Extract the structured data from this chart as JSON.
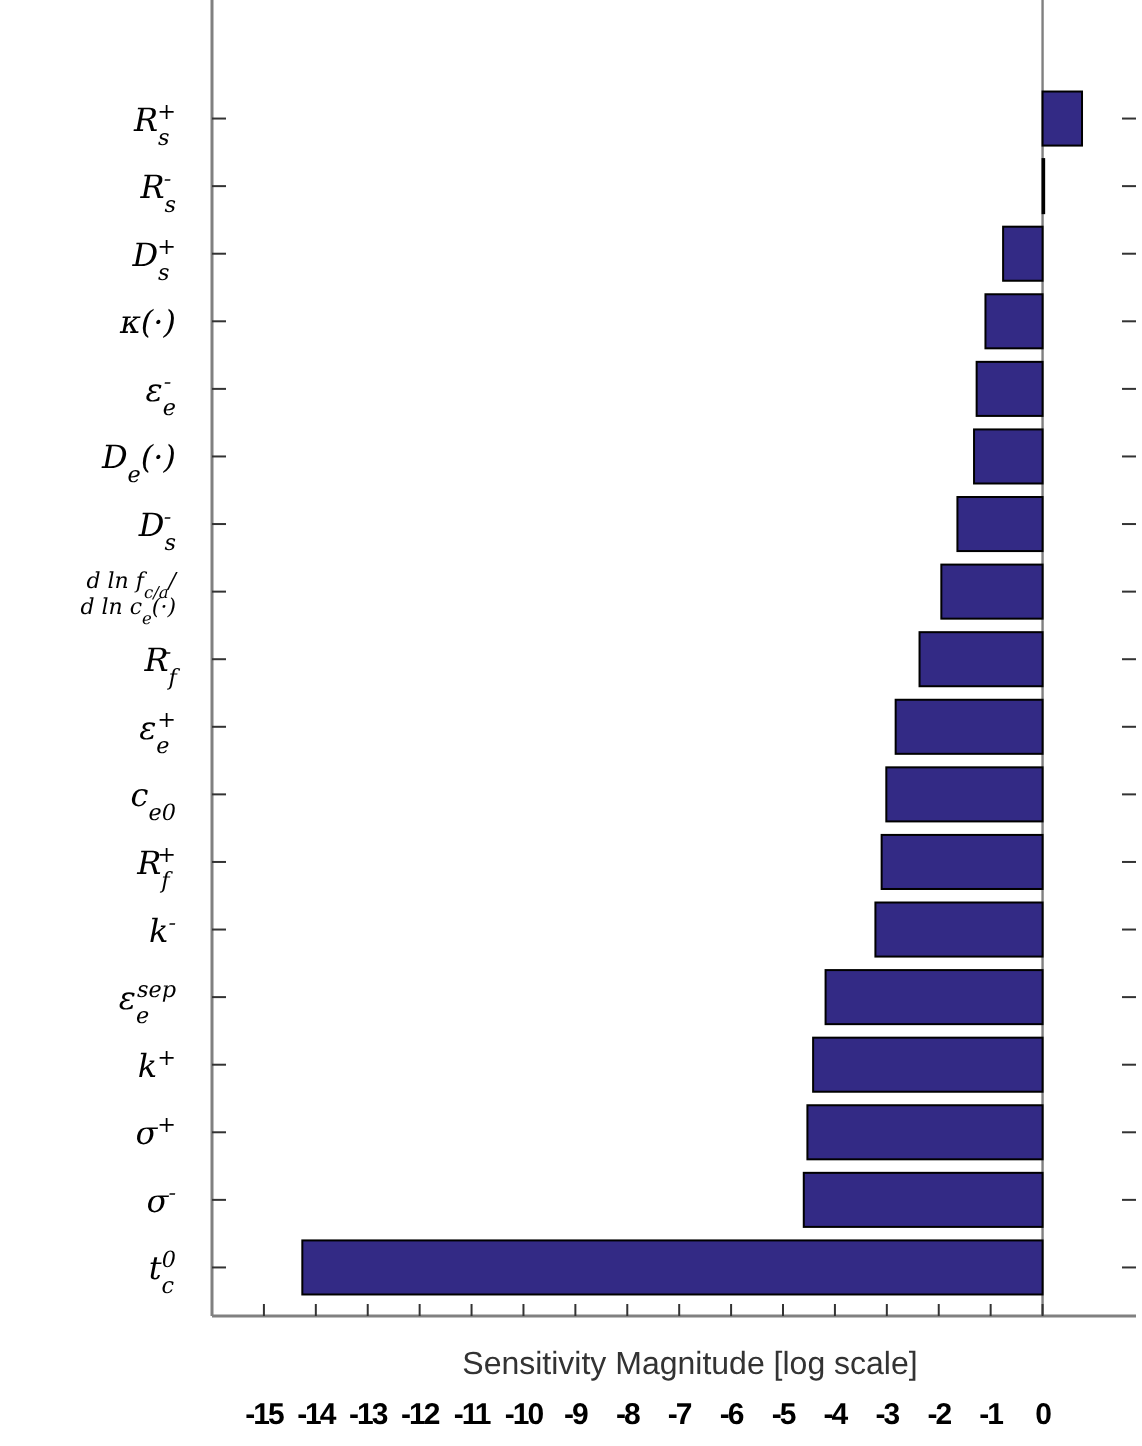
{
  "chart_data": {
    "type": "bar",
    "orientation": "horizontal",
    "xlabel": "Sensitivity Magnitude [log scale]",
    "categories": [
      "R$_{s}$$^{+}$",
      "R$_{s}$$^{-}$",
      "D$_{s}$$^{+}$",
      "κ(·)",
      "ε$_{e}$$^{-}$",
      "D$_{e}$(·)",
      "D$_{s}$$^{-}$",
      "d ln f$_{c/a}$/d ln c$_{e}$(·)",
      "R$_{f}$$^{-}$",
      "ε$_{e}$$^{+}$",
      "c$_{e0}$",
      "R$_{f}$$^{+}$",
      "k$^{-}$",
      "ε$_{e}$$^{sep}$",
      "k$^{+}$",
      "σ$^{+}$",
      "σ$^{-}$",
      "t$_{c}$$^{0}$"
    ],
    "values": [
      0.76,
      0.02,
      -0.76,
      -1.1,
      -1.27,
      -1.32,
      -1.64,
      -1.95,
      -2.37,
      -2.83,
      -3.01,
      -3.1,
      -3.22,
      -4.18,
      -4.42,
      -4.53,
      -4.6,
      -14.26
    ],
    "color": "#332a85",
    "xlim": [
      -16,
      1.8
    ],
    "xticks": [
      -15,
      -14,
      -13,
      -12,
      -11,
      -10,
      -9,
      -8,
      -7,
      -6,
      -5,
      -4,
      -3,
      -2,
      -1,
      0
    ],
    "ref_lines": [
      {
        "axis": "x",
        "value": 0,
        "color": "#808080"
      }
    ],
    "grid": false
  }
}
